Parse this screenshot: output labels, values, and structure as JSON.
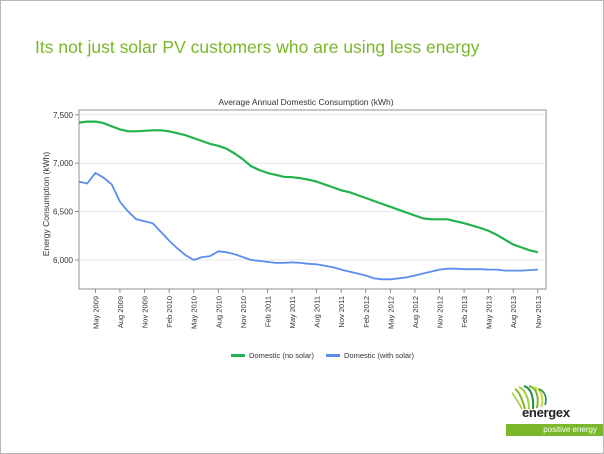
{
  "slide": {
    "title": "Its not just solar PV customers who are using less energy"
  },
  "brand": {
    "name": "energex",
    "tagline": "positive energy",
    "accent_color": "#7ab72a"
  },
  "chart_data": {
    "type": "line",
    "title": "Average Annual Domestic Consumption (kWh)",
    "xlabel": "",
    "ylabel": "Energy Consumption (kWh)",
    "ylim": [
      5700,
      7550
    ],
    "y_ticks": [
      6000,
      6500,
      7000,
      7500
    ],
    "y_tick_labels": [
      "6,000",
      "6,500",
      "7,000",
      "7,500"
    ],
    "x_tick_labels": [
      "May 2009",
      "Aug 2009",
      "Nov 2009",
      "Feb 2010",
      "May 2010",
      "Aug 2010",
      "Nov 2010",
      "Feb 2011",
      "May 2011",
      "Aug 2011",
      "Nov 2011",
      "Feb 2012",
      "May 2012",
      "Aug 2012",
      "Nov 2012",
      "Feb 2013",
      "May 2013",
      "Aug 2013",
      "Nov 2013"
    ],
    "x_tick_months": [
      2,
      5,
      8,
      11,
      14,
      17,
      20,
      23,
      26,
      29,
      32,
      35,
      38,
      41,
      44,
      47,
      50,
      53,
      56
    ],
    "x_range_months": [
      0,
      57
    ],
    "grid": true,
    "legend_position": "bottom",
    "series": [
      {
        "name": "Domestic (no solar)",
        "color": "#22b14c",
        "x": [
          0,
          1,
          2,
          3,
          4,
          5,
          6,
          7,
          8,
          9,
          10,
          11,
          12,
          13,
          14,
          15,
          16,
          17,
          18,
          19,
          20,
          21,
          22,
          23,
          24,
          25,
          26,
          27,
          28,
          29,
          30,
          31,
          32,
          33,
          34,
          35,
          36,
          37,
          38,
          39,
          40,
          41,
          42,
          43,
          44,
          45,
          46,
          47,
          48,
          49,
          50,
          51,
          52,
          53,
          54,
          55,
          56
        ],
        "values": [
          7420,
          7430,
          7430,
          7415,
          7380,
          7350,
          7330,
          7330,
          7335,
          7340,
          7340,
          7330,
          7310,
          7290,
          7260,
          7230,
          7200,
          7180,
          7150,
          7100,
          7040,
          6970,
          6930,
          6900,
          6880,
          6860,
          6855,
          6845,
          6830,
          6810,
          6780,
          6750,
          6720,
          6700,
          6670,
          6640,
          6610,
          6580,
          6550,
          6520,
          6490,
          6460,
          6430,
          6420,
          6420,
          6420,
          6400,
          6380,
          6355,
          6330,
          6300,
          6260,
          6210,
          6160,
          6130,
          6100,
          6080
        ]
      },
      {
        "name": "Domestic (with solar)",
        "color": "#5b8def",
        "x": [
          0,
          1,
          2,
          3,
          4,
          5,
          6,
          7,
          8,
          9,
          10,
          11,
          12,
          13,
          14,
          15,
          16,
          17,
          18,
          19,
          20,
          21,
          22,
          23,
          24,
          25,
          26,
          27,
          28,
          29,
          30,
          31,
          32,
          33,
          34,
          35,
          36,
          37,
          38,
          39,
          40,
          41,
          42,
          43,
          44,
          45,
          46,
          47,
          48,
          49,
          50,
          51,
          52,
          53,
          54,
          55,
          56
        ],
        "values": [
          6810,
          6790,
          6900,
          6850,
          6780,
          6600,
          6500,
          6420,
          6400,
          6380,
          6290,
          6200,
          6120,
          6050,
          6000,
          6030,
          6040,
          6090,
          6080,
          6060,
          6030,
          6000,
          5990,
          5980,
          5970,
          5970,
          5975,
          5970,
          5960,
          5955,
          5940,
          5925,
          5900,
          5880,
          5860,
          5840,
          5810,
          5800,
          5800,
          5810,
          5820,
          5840,
          5860,
          5880,
          5900,
          5910,
          5910,
          5905,
          5905,
          5905,
          5900,
          5900,
          5890,
          5890,
          5890,
          5895,
          5900
        ]
      }
    ]
  }
}
